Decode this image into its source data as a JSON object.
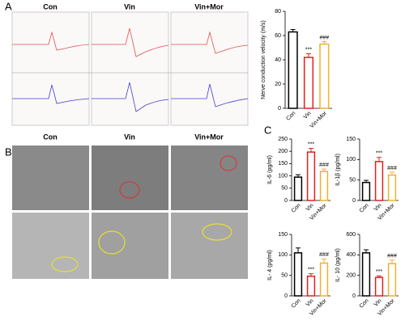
{
  "panels": [
    {
      "label": "A",
      "columns": [
        "Con",
        "Vin",
        "Vin+Mor"
      ]
    },
    {
      "label": "B",
      "columns": [
        "Con",
        "Vin",
        "Vin+Mor"
      ]
    },
    {
      "label": "C"
    }
  ],
  "chart_data": [
    {
      "type": "bar",
      "ylabel": "Nerve conduction velocity (m/s)",
      "categories": [
        "Con",
        "Vin",
        "Vin+Mor"
      ],
      "values": [
        63,
        42,
        53
      ],
      "errors": [
        2,
        3,
        2
      ],
      "colors": [
        "#000000",
        "#e02020",
        "#f0b030"
      ],
      "ylim": [
        0,
        80
      ],
      "yticks": [
        0,
        20,
        40,
        60,
        80
      ],
      "annotations": [
        {
          "category": "Vin",
          "text": "***"
        },
        {
          "category": "Vin+Mor",
          "text": "###"
        }
      ]
    },
    {
      "type": "bar",
      "ylabel": "IL-6 (pg/ml)",
      "categories": [
        "Con",
        "Vin",
        "Vin+Mor"
      ],
      "values": [
        95,
        197,
        118
      ],
      "errors": [
        10,
        15,
        10
      ],
      "colors": [
        "#000000",
        "#e02020",
        "#f0b030"
      ],
      "ylim": [
        0,
        250
      ],
      "yticks": [
        0,
        50,
        100,
        150,
        200,
        250
      ],
      "annotations": [
        {
          "category": "Vin",
          "text": "***"
        },
        {
          "category": "Vin+Mor",
          "text": "###"
        }
      ]
    },
    {
      "type": "bar",
      "ylabel": "IL-1β (pg/ml)",
      "categories": [
        "Con",
        "Vin",
        "Vin+Mor"
      ],
      "values": [
        44,
        95,
        62
      ],
      "errors": [
        5,
        10,
        7
      ],
      "colors": [
        "#000000",
        "#e02020",
        "#f0b030"
      ],
      "ylim": [
        0,
        150
      ],
      "yticks": [
        0,
        50,
        100,
        150
      ],
      "annotations": [
        {
          "category": "Vin",
          "text": "***"
        },
        {
          "category": "Vin+Mor",
          "text": "###"
        }
      ]
    },
    {
      "type": "bar",
      "ylabel": "IL- 4 (pg/ml)",
      "categories": [
        "Con",
        "Vin",
        "Vin+Mor"
      ],
      "values": [
        105,
        48,
        80
      ],
      "errors": [
        12,
        6,
        10
      ],
      "colors": [
        "#000000",
        "#e02020",
        "#f0b030"
      ],
      "ylim": [
        0,
        150
      ],
      "yticks": [
        0,
        50,
        100,
        150
      ],
      "annotations": [
        {
          "category": "Vin",
          "text": "***"
        },
        {
          "category": "Vin+Mor",
          "text": "###"
        }
      ]
    },
    {
      "type": "bar",
      "ylabel": "IL- 10 (pg/ml)",
      "categories": [
        "Con",
        "Vin",
        "Vin+Mor"
      ],
      "values": [
        420,
        180,
        315
      ],
      "errors": [
        30,
        15,
        35
      ],
      "colors": [
        "#000000",
        "#e02020",
        "#f0b030"
      ],
      "ylim": [
        0,
        600
      ],
      "yticks": [
        0,
        200,
        400,
        600
      ],
      "annotations": [
        {
          "category": "Vin",
          "text": "***"
        },
        {
          "category": "Vin+Mor",
          "text": "###"
        }
      ]
    }
  ]
}
